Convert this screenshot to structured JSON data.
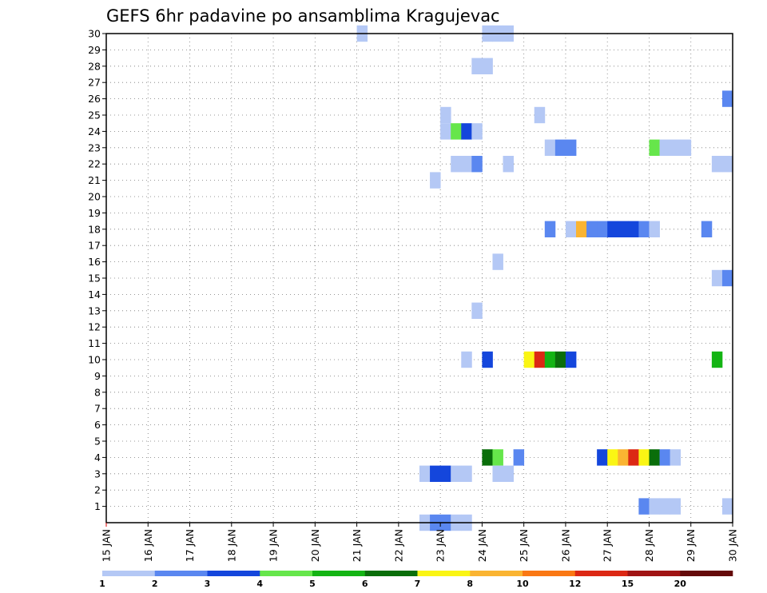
{
  "chart_data": {
    "type": "heatmap",
    "title": "GEFS 6hr padavine po ansamblima Kragujevac",
    "xlabel": "",
    "ylabel": "",
    "x_ticks": [
      "15 JAN",
      "16 JAN",
      "17 JAN",
      "18 JAN",
      "19 JAN",
      "20 JAN",
      "21 JAN",
      "22 JAN",
      "23 JAN",
      "24 JAN",
      "25 JAN",
      "26 JAN",
      "27 JAN",
      "28 JAN",
      "29 JAN",
      "30 JAN"
    ],
    "x_range_days": [
      15,
      30
    ],
    "y_ticks": [
      1,
      2,
      3,
      4,
      5,
      6,
      7,
      8,
      9,
      10,
      11,
      12,
      13,
      14,
      15,
      16,
      17,
      18,
      19,
      20,
      21,
      22,
      23,
      24,
      25,
      26,
      27,
      28,
      29,
      30
    ],
    "y_range": [
      0,
      30
    ],
    "grid": true,
    "colorbar": {
      "placement": "bottom",
      "colors": [
        "#b4c8f5",
        "#5a87f0",
        "#1446dc",
        "#66e64b",
        "#14b414",
        "#0a6e0a",
        "#faf514",
        "#fab432",
        "#fa7814",
        "#dc2814",
        "#a01414",
        "#640a0a"
      ],
      "labels": [
        "1",
        "2",
        "3",
        "4",
        "5",
        "6",
        "7",
        "8",
        "10",
        "12",
        "15",
        "20"
      ]
    },
    "cells": [
      {
        "member": 30,
        "day": 21.0,
        "level": 1
      },
      {
        "member": 30,
        "day": 24.0,
        "level": 1
      },
      {
        "member": 30,
        "day": 24.25,
        "level": 1
      },
      {
        "member": 30,
        "day": 24.5,
        "level": 1
      },
      {
        "member": 28,
        "day": 23.75,
        "level": 1
      },
      {
        "member": 28,
        "day": 24.0,
        "level": 1
      },
      {
        "member": 26,
        "day": 29.75,
        "level": 2
      },
      {
        "member": 25,
        "day": 23.0,
        "level": 1
      },
      {
        "member": 25,
        "day": 25.25,
        "level": 1
      },
      {
        "member": 24,
        "day": 23.0,
        "level": 1
      },
      {
        "member": 24,
        "day": 23.25,
        "level": 4
      },
      {
        "member": 24,
        "day": 23.5,
        "level": 3
      },
      {
        "member": 24,
        "day": 23.75,
        "level": 1
      },
      {
        "member": 23,
        "day": 25.5,
        "level": 1
      },
      {
        "member": 23,
        "day": 25.75,
        "level": 2
      },
      {
        "member": 23,
        "day": 26.0,
        "level": 2
      },
      {
        "member": 23,
        "day": 28.0,
        "level": 4
      },
      {
        "member": 23,
        "day": 28.25,
        "level": 1
      },
      {
        "member": 23,
        "day": 28.5,
        "level": 1
      },
      {
        "member": 23,
        "day": 28.75,
        "level": 1
      },
      {
        "member": 22,
        "day": 23.25,
        "level": 1
      },
      {
        "member": 22,
        "day": 23.5,
        "level": 1
      },
      {
        "member": 22,
        "day": 23.75,
        "level": 2
      },
      {
        "member": 22,
        "day": 24.5,
        "level": 1
      },
      {
        "member": 22,
        "day": 29.5,
        "level": 1
      },
      {
        "member": 22,
        "day": 29.75,
        "level": 1
      },
      {
        "member": 21,
        "day": 22.75,
        "level": 1
      },
      {
        "member": 18,
        "day": 25.5,
        "level": 2
      },
      {
        "member": 18,
        "day": 26.0,
        "level": 1
      },
      {
        "member": 18,
        "day": 26.25,
        "level": 8
      },
      {
        "member": 18,
        "day": 26.5,
        "level": 2
      },
      {
        "member": 18,
        "day": 26.75,
        "level": 2
      },
      {
        "member": 18,
        "day": 27.0,
        "level": 3
      },
      {
        "member": 18,
        "day": 27.25,
        "level": 3
      },
      {
        "member": 18,
        "day": 27.5,
        "level": 3
      },
      {
        "member": 18,
        "day": 27.75,
        "level": 2
      },
      {
        "member": 18,
        "day": 28.0,
        "level": 1
      },
      {
        "member": 18,
        "day": 29.25,
        "level": 2
      },
      {
        "member": 16,
        "day": 24.25,
        "level": 1
      },
      {
        "member": 15,
        "day": 29.5,
        "level": 1
      },
      {
        "member": 15,
        "day": 29.75,
        "level": 2
      },
      {
        "member": 13,
        "day": 23.75,
        "level": 1
      },
      {
        "member": 10,
        "day": 23.5,
        "level": 1
      },
      {
        "member": 10,
        "day": 24.0,
        "level": 3
      },
      {
        "member": 10,
        "day": 25.0,
        "level": 7
      },
      {
        "member": 10,
        "day": 25.25,
        "level": 10
      },
      {
        "member": 10,
        "day": 25.5,
        "level": 5
      },
      {
        "member": 10,
        "day": 25.75,
        "level": 6
      },
      {
        "member": 10,
        "day": 26.0,
        "level": 3
      },
      {
        "member": 10,
        "day": 29.5,
        "level": 5
      },
      {
        "member": 4,
        "day": 24.0,
        "level": 6
      },
      {
        "member": 4,
        "day": 24.25,
        "level": 4
      },
      {
        "member": 4,
        "day": 24.75,
        "level": 2
      },
      {
        "member": 4,
        "day": 26.75,
        "level": 3
      },
      {
        "member": 4,
        "day": 27.0,
        "level": 7
      },
      {
        "member": 4,
        "day": 27.25,
        "level": 8
      },
      {
        "member": 4,
        "day": 27.5,
        "level": 10
      },
      {
        "member": 4,
        "day": 27.75,
        "level": 7
      },
      {
        "member": 4,
        "day": 28.0,
        "level": 6
      },
      {
        "member": 4,
        "day": 28.25,
        "level": 2
      },
      {
        "member": 4,
        "day": 28.5,
        "level": 1
      },
      {
        "member": 3,
        "day": 22.5,
        "level": 1
      },
      {
        "member": 3,
        "day": 22.75,
        "level": 3
      },
      {
        "member": 3,
        "day": 23.0,
        "level": 3
      },
      {
        "member": 3,
        "day": 23.25,
        "level": 1
      },
      {
        "member": 3,
        "day": 23.5,
        "level": 1
      },
      {
        "member": 3,
        "day": 24.25,
        "level": 1
      },
      {
        "member": 3,
        "day": 24.5,
        "level": 1
      },
      {
        "member": 1,
        "day": 27.75,
        "level": 2
      },
      {
        "member": 1,
        "day": 28.0,
        "level": 1
      },
      {
        "member": 1,
        "day": 28.25,
        "level": 1
      },
      {
        "member": 1,
        "day": 28.5,
        "level": 1
      },
      {
        "member": 1,
        "day": 29.75,
        "level": 1
      },
      {
        "member": 0,
        "day": 22.5,
        "level": 1
      },
      {
        "member": 0,
        "day": 22.75,
        "level": 2
      },
      {
        "member": 0,
        "day": 23.0,
        "level": 2
      },
      {
        "member": 0,
        "day": 23.25,
        "level": 1
      },
      {
        "member": 0,
        "day": 23.5,
        "level": 1
      }
    ]
  }
}
